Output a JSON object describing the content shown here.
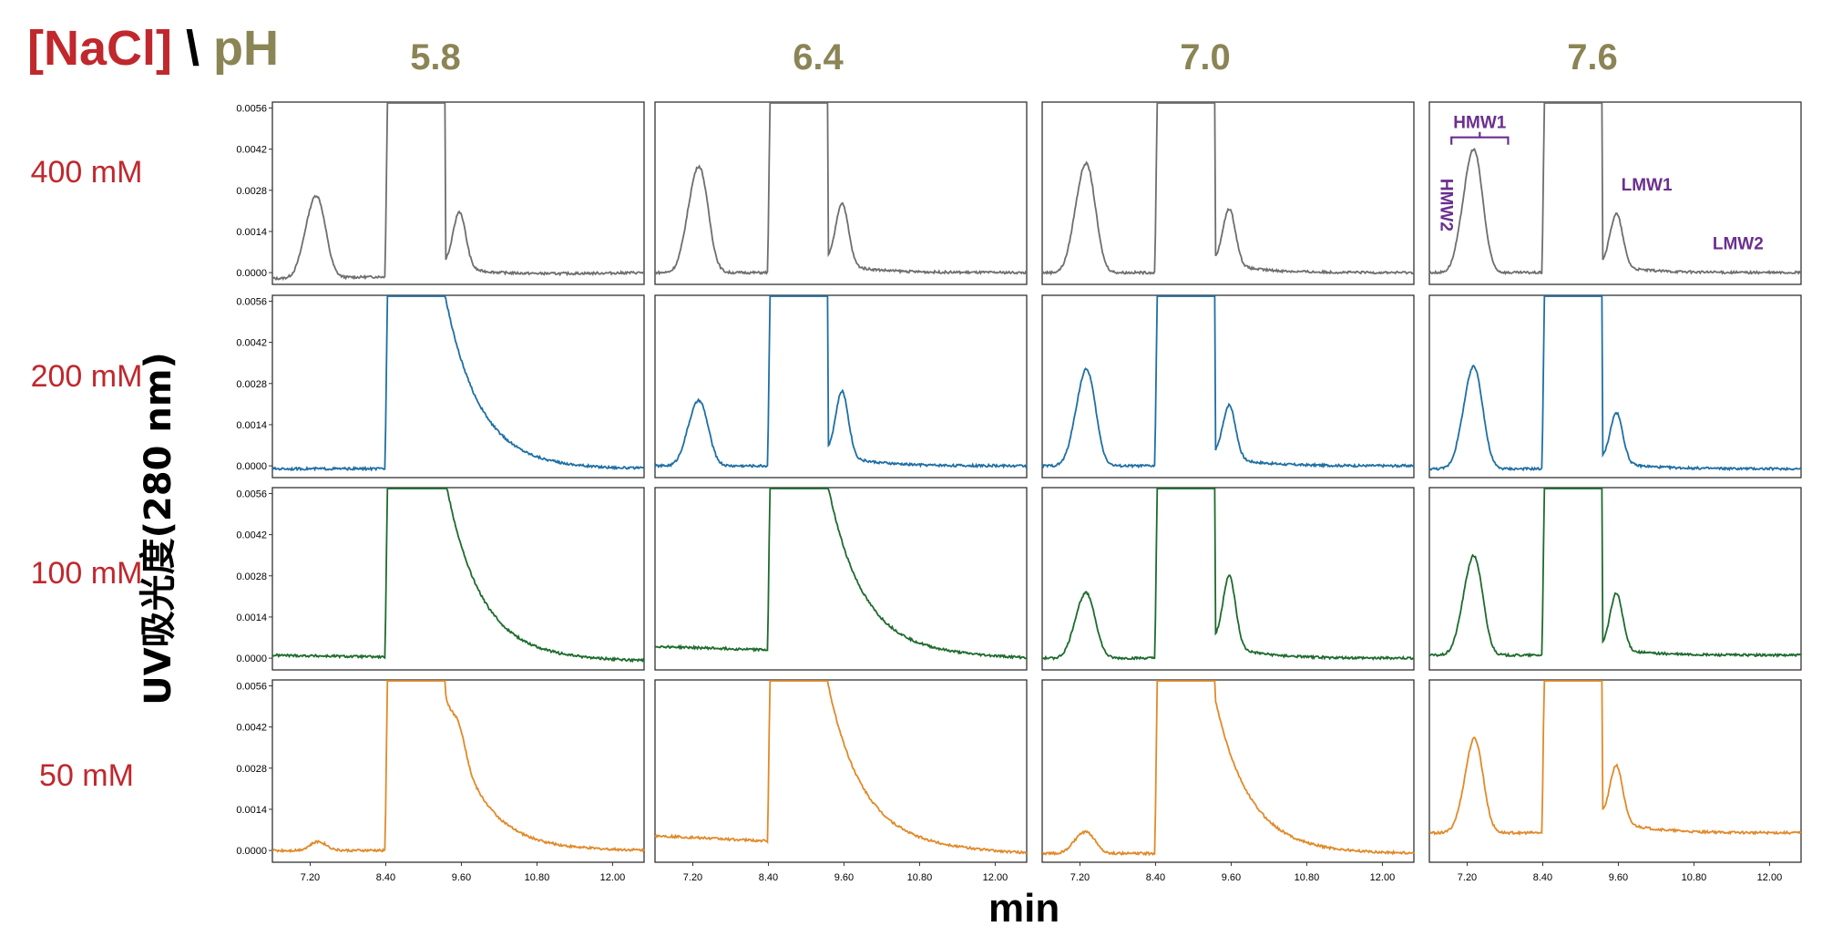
{
  "header": {
    "nacl_label": "[NaCl]",
    "separator": "\\",
    "ph_label": "pH",
    "nacl_color": "#c0282d",
    "ph_color": "#8b8455"
  },
  "axes": {
    "ylabel": "UV吸光度(280 nm)",
    "xlabel": "min"
  },
  "chart_data": {
    "type": "line",
    "layout": "small-multiples grid (rows: [NaCl], columns: pH)",
    "columns": [
      "5.8",
      "6.4",
      "7.0",
      "7.6"
    ],
    "rows": [
      "400 mM",
      "200 mM",
      "100 mM",
      "50 mM"
    ],
    "row_colors": [
      "#6e6e6e",
      "#1f6fa3",
      "#1e6b2e",
      "#e08a2a"
    ],
    "xlim": [
      6.6,
      12.5
    ],
    "ylim": [
      -0.0004,
      0.0058
    ],
    "x_ticks": [
      "7.20",
      "8.40",
      "9.60",
      "10.80",
      "12.00"
    ],
    "y_ticks": [
      "0.0000",
      "0.0014",
      "0.0028",
      "0.0042",
      "0.0056"
    ],
    "grid": false,
    "annotations": [
      {
        "text": "HMW1",
        "row": 0,
        "col": 3,
        "color": "#6a2f8f"
      },
      {
        "text": "HMW2",
        "row": 0,
        "col": 3,
        "color": "#6a2f8f"
      },
      {
        "text": "LMW1",
        "row": 0,
        "col": 3,
        "color": "#6a2f8f"
      },
      {
        "text": "LMW2",
        "row": 0,
        "col": 3,
        "color": "#6a2f8f"
      }
    ],
    "peak_retention_min": {
      "HMW2": 7.15,
      "HMW1": 7.33,
      "main": 8.95,
      "LMW1": 9.57
    },
    "traces": [
      {
        "row": 0,
        "col": 0,
        "baseline": 0.0,
        "main_start": 8.45,
        "main_end": 9.35,
        "hmw2": 0.001,
        "hmw1": 0.0024,
        "lmw1": 0.0019,
        "tail": 0.0004,
        "drift": -0.0002
      },
      {
        "row": 0,
        "col": 1,
        "baseline": 0.0,
        "main_start": 8.45,
        "main_end": 9.35,
        "hmw2": 0.0013,
        "hmw1": 0.0031,
        "lmw1": 0.0021,
        "tail": 0.0004,
        "drift": 0.0
      },
      {
        "row": 0,
        "col": 2,
        "baseline": 0.0,
        "main_start": 8.45,
        "main_end": 9.35,
        "hmw2": 0.0013,
        "hmw1": 0.0032,
        "lmw1": 0.0019,
        "tail": 0.0004,
        "drift": 0.0
      },
      {
        "row": 0,
        "col": 3,
        "baseline": 0.0,
        "main_start": 8.45,
        "main_end": 9.35,
        "hmw2": 0.0013,
        "hmw1": 0.0037,
        "lmw1": 0.0018,
        "tail": 0.0003,
        "drift": 0.0
      },
      {
        "row": 1,
        "col": 0,
        "baseline": -0.0001,
        "main_start": 8.45,
        "main_end": 9.35,
        "hmw2": 0.0,
        "hmw1": 0.0,
        "lmw1": 0.0,
        "tail": 0.0058,
        "drift": 0.0
      },
      {
        "row": 1,
        "col": 1,
        "baseline": 0.0,
        "main_start": 8.45,
        "main_end": 9.35,
        "hmw2": 0.0008,
        "hmw1": 0.0019,
        "lmw1": 0.0022,
        "tail": 0.0005,
        "drift": 0.0
      },
      {
        "row": 1,
        "col": 2,
        "baseline": 0.0,
        "main_start": 8.45,
        "main_end": 9.35,
        "hmw2": 0.001,
        "hmw1": 0.0029,
        "lmw1": 0.0018,
        "tail": 0.0004,
        "drift": 0.0
      },
      {
        "row": 1,
        "col": 3,
        "baseline": -0.0001,
        "main_start": 8.45,
        "main_end": 9.35,
        "hmw2": 0.001,
        "hmw1": 0.0031,
        "lmw1": 0.0017,
        "tail": 0.0003,
        "drift": 0.0
      },
      {
        "row": 2,
        "col": 0,
        "baseline": -0.0001,
        "main_start": 8.45,
        "main_end": 9.35,
        "hmw2": 0.0,
        "hmw1": 0.0,
        "lmw1": 0.0,
        "tail": 0.006,
        "drift": 0.0002
      },
      {
        "row": 2,
        "col": 1,
        "baseline": 0.0,
        "main_start": 8.45,
        "main_end": 9.35,
        "hmw2": 0.0,
        "hmw1": 0.0,
        "lmw1": 0.0,
        "tail": 0.0056,
        "drift": 0.0004
      },
      {
        "row": 2,
        "col": 2,
        "baseline": 0.0,
        "main_start": 8.45,
        "main_end": 9.35,
        "hmw2": 0.0008,
        "hmw1": 0.0019,
        "lmw1": 0.0024,
        "tail": 0.0006,
        "drift": 0.0
      },
      {
        "row": 2,
        "col": 3,
        "baseline": 0.0001,
        "main_start": 8.45,
        "main_end": 9.35,
        "hmw2": 0.001,
        "hmw1": 0.003,
        "lmw1": 0.0019,
        "tail": 0.0003,
        "drift": 0.0
      },
      {
        "row": 3,
        "col": 0,
        "baseline": 0.0,
        "main_start": 8.45,
        "main_end": 9.35,
        "hmw2": 0.0,
        "hmw1": 0.0003,
        "lmw1": 0.0008,
        "tail": 0.0052,
        "drift": 0.0
      },
      {
        "row": 3,
        "col": 1,
        "baseline": -0.0001,
        "main_start": 8.45,
        "main_end": 9.35,
        "hmw2": 0.0,
        "hmw1": 0.0,
        "lmw1": 0.0,
        "tail": 0.0054,
        "drift": 0.0006
      },
      {
        "row": 3,
        "col": 2,
        "baseline": -0.0001,
        "main_start": 8.45,
        "main_end": 9.35,
        "hmw2": 0.0003,
        "hmw1": 0.0006,
        "lmw1": 0.0,
        "tail": 0.0052,
        "drift": 0.0
      },
      {
        "row": 3,
        "col": 3,
        "baseline": 0.0006,
        "main_start": 8.45,
        "main_end": 9.35,
        "hmw2": 0.0006,
        "hmw1": 0.003,
        "lmw1": 0.0019,
        "tail": 0.0006,
        "drift": 0.0
      }
    ]
  }
}
